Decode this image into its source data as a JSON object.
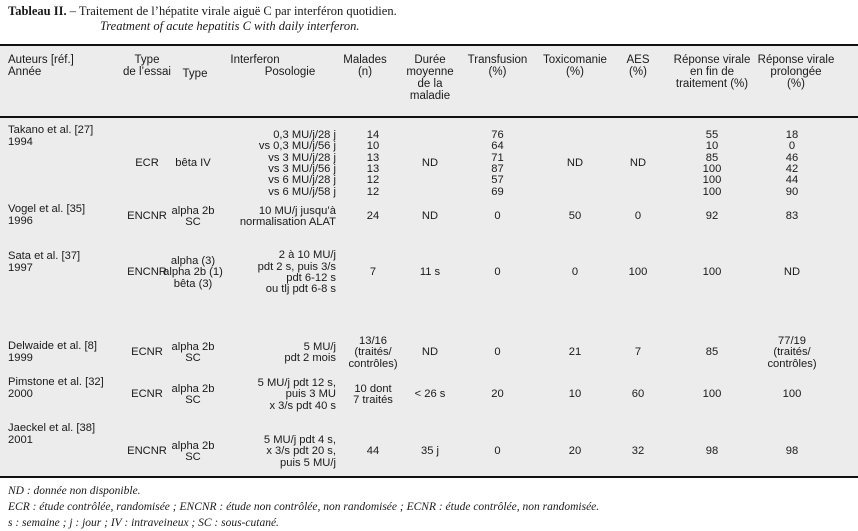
{
  "caption": {
    "label": "Tableau II.",
    "title": " – Traitement de l’hépatite virale aiguë C par interféron quotidien.",
    "english": "Treatment of acute hepatitis C with daily interferon."
  },
  "headers": {
    "authors": "Auteurs [réf.]\nAnnée",
    "trial_type": "Type\nde l’essai",
    "interferon": "Interferon",
    "ifn_type": "Type",
    "posology": "Posologie",
    "patients": "Malades\n(n)",
    "duration": "Durée\nmoyenne\nde la\nmaladie",
    "transfusion": "Transfusion\n(%)",
    "drug_use": "Toxicomanie\n(%)",
    "aes": "AES\n(%)",
    "end_response": "Réponse virale\nen fin de\ntraitement (%)",
    "sustained_response": "Réponse virale\nprolongée\n(%)"
  },
  "rows": [
    {
      "author": "Takano et al. [27]\n1994",
      "trial": "ECR",
      "type": "bêta IV",
      "posology": "0,3 MU/j/28 j\nvs 0,3 MU/j/56 j\nvs 3 MU/j/28 j\nvs 3 MU/j/56 j\nvs 6 MU/j/28 j\nvs 6 MU/j/58 j",
      "patients": "14\n10\n13\n13\n12\n12",
      "duration": "ND",
      "transfusion": "76\n64\n71\n87\n57\n69",
      "drug": "ND",
      "aes": "ND",
      "end": "55\n10\n85\n100\n100\n100",
      "sustained": "18\n0\n46\n42\n44\n90"
    },
    {
      "author": "Vogel et al. [35]\n1996",
      "trial": "ENCNR",
      "type": "alpha 2b\nSC",
      "posology": "10 MU/j jusqu’à\nnormalisation ALAT",
      "patients": "24",
      "duration": "ND",
      "transfusion": "0",
      "drug": "50",
      "aes": "0",
      "end": "92",
      "sustained": "83"
    },
    {
      "author": "Sata et al. [37]\n1997",
      "trial": "ENCNR",
      "type": "alpha (3)\nalpha 2b (1)\nbêta (3)",
      "posology": "2 à 10 MU/j\npdt 2 s, puis 3/s\npdt 6-12 s\nou tlj pdt 6-8 s",
      "patients": "7",
      "duration": "11 s",
      "transfusion": "0",
      "drug": "0",
      "aes": "100",
      "end": "100",
      "sustained": "ND"
    },
    {
      "author": "Delwaide et al. [8]\n1999",
      "trial": "ECNR",
      "type": "alpha 2b\nSC",
      "posology": "5 MU/j\npdt 2 mois",
      "patients": "13/16\n(traités/\ncontrôles)",
      "duration": "ND",
      "transfusion": "0",
      "drug": "21",
      "aes": "7",
      "end": "85",
      "sustained": "77/19\n(traités/\ncontrôles)"
    },
    {
      "author": "Pimstone et al. [32]\n2000",
      "trial": "ECNR",
      "type": "alpha 2b\nSC",
      "posology": "5 MU/j pdt 12 s,\npuis 3 MU\nx 3/s pdt 40 s",
      "patients": "10 dont\n7 traités",
      "duration": "< 26 s",
      "transfusion": "20",
      "drug": "10",
      "aes": "60",
      "end": "100",
      "sustained": "100"
    },
    {
      "author": "Jaeckel et al. [38]\n2001",
      "trial": "ENCNR",
      "type": "alpha 2b\nSC",
      "posology": "5 MU/j pdt 4 s,\nx 3/s pdt 20 s,\npuis 5 MU/j",
      "patients": "44",
      "duration": "35 j",
      "transfusion": "0",
      "drug": "20",
      "aes": "32",
      "end": "98",
      "sustained": "98"
    }
  ],
  "footnotes": [
    "ND : donnée non disponible.",
    "ECR : étude contrôlée, randomisée ; ENCNR : étude non contrôlée, non randomisée ; ECNR : étude contrôlée, non randomisée.",
    "s : semaine ; j : jour ; IV : intraveineux ; SC : sous-cutané."
  ]
}
